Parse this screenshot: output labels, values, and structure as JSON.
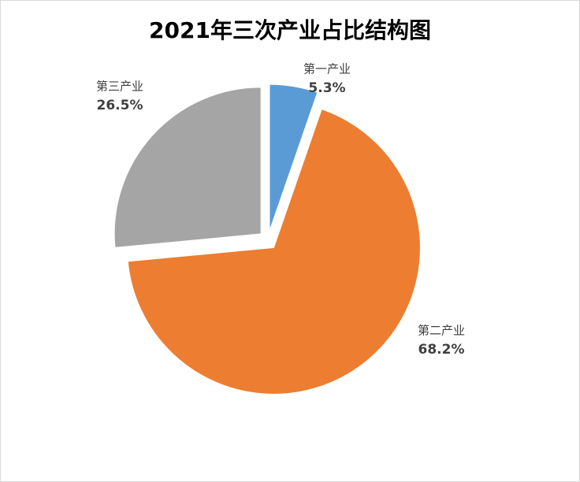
{
  "chart_data": {
    "type": "pie",
    "title": "2021年三次产业占比结构图",
    "categories": [
      "第一产业",
      "第二产业",
      "第三产业"
    ],
    "values": [
      5.3,
      68.2,
      26.5
    ],
    "value_labels": [
      "5.3%",
      "68.2%",
      "26.5%"
    ],
    "colors": [
      "#5b9bd5",
      "#ed7d31",
      "#a5a5a5"
    ]
  }
}
